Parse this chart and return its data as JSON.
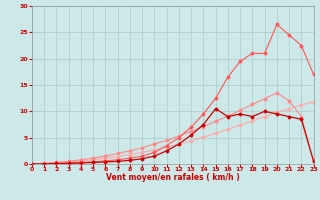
{
  "x": [
    0,
    1,
    2,
    3,
    4,
    5,
    6,
    7,
    8,
    9,
    10,
    11,
    12,
    13,
    14,
    15,
    16,
    17,
    18,
    19,
    20,
    21,
    22,
    23
  ],
  "series": [
    {
      "name": "line_lightest_pink",
      "color": "#ffaaaa",
      "linewidth": 0.8,
      "marker": "D",
      "markersize": 1.5,
      "values": [
        0,
        0.1,
        0.2,
        0.4,
        0.6,
        0.8,
        1.1,
        1.4,
        1.8,
        2.2,
        2.7,
        3.2,
        3.8,
        4.4,
        5.1,
        5.8,
        6.6,
        7.4,
        8.2,
        9.0,
        9.8,
        10.5,
        11.2,
        11.8
      ]
    },
    {
      "name": "line_light_pink",
      "color": "#ff8888",
      "linewidth": 0.8,
      "marker": "D",
      "markersize": 1.5,
      "values": [
        0,
        0.1,
        0.3,
        0.5,
        0.8,
        1.1,
        1.5,
        2.0,
        2.5,
        3.1,
        3.8,
        4.5,
        5.3,
        6.2,
        7.1,
        8.1,
        9.1,
        10.2,
        11.3,
        12.4,
        13.5,
        12.0,
        9.0,
        0.5
      ]
    },
    {
      "name": "line_medium_pink",
      "color": "#ff5555",
      "linewidth": 0.8,
      "marker": "D",
      "markersize": 1.5,
      "values": [
        0,
        0.0,
        0.1,
        0.2,
        0.3,
        0.4,
        0.6,
        0.8,
        1.1,
        1.5,
        2.2,
        3.5,
        5.0,
        7.0,
        9.5,
        12.5,
        16.5,
        19.5,
        21.0,
        21.0,
        26.5,
        24.5,
        22.5,
        17.0
      ]
    },
    {
      "name": "line_dark_red",
      "color": "#cc0000",
      "linewidth": 0.9,
      "marker": "D",
      "markersize": 1.5,
      "values": [
        0,
        0.0,
        0.1,
        0.1,
        0.2,
        0.3,
        0.4,
        0.5,
        0.7,
        1.0,
        1.5,
        2.5,
        3.8,
        5.5,
        7.5,
        10.5,
        9.0,
        9.5,
        9.0,
        10.0,
        9.5,
        9.0,
        8.5,
        0.5
      ]
    }
  ],
  "xlabel": "Vent moyen/en rafales ( km/h )",
  "xlim": [
    0,
    23
  ],
  "ylim": [
    0,
    30
  ],
  "yticks": [
    0,
    5,
    10,
    15,
    20,
    25,
    30
  ],
  "xticks": [
    0,
    1,
    2,
    3,
    4,
    5,
    6,
    7,
    8,
    9,
    10,
    11,
    12,
    13,
    14,
    15,
    16,
    17,
    18,
    19,
    20,
    21,
    22,
    23
  ],
  "bg_color": "#cce8e8",
  "grid_color": "#aacccc",
  "tick_color": "#cc0000",
  "label_color": "#cc0000"
}
